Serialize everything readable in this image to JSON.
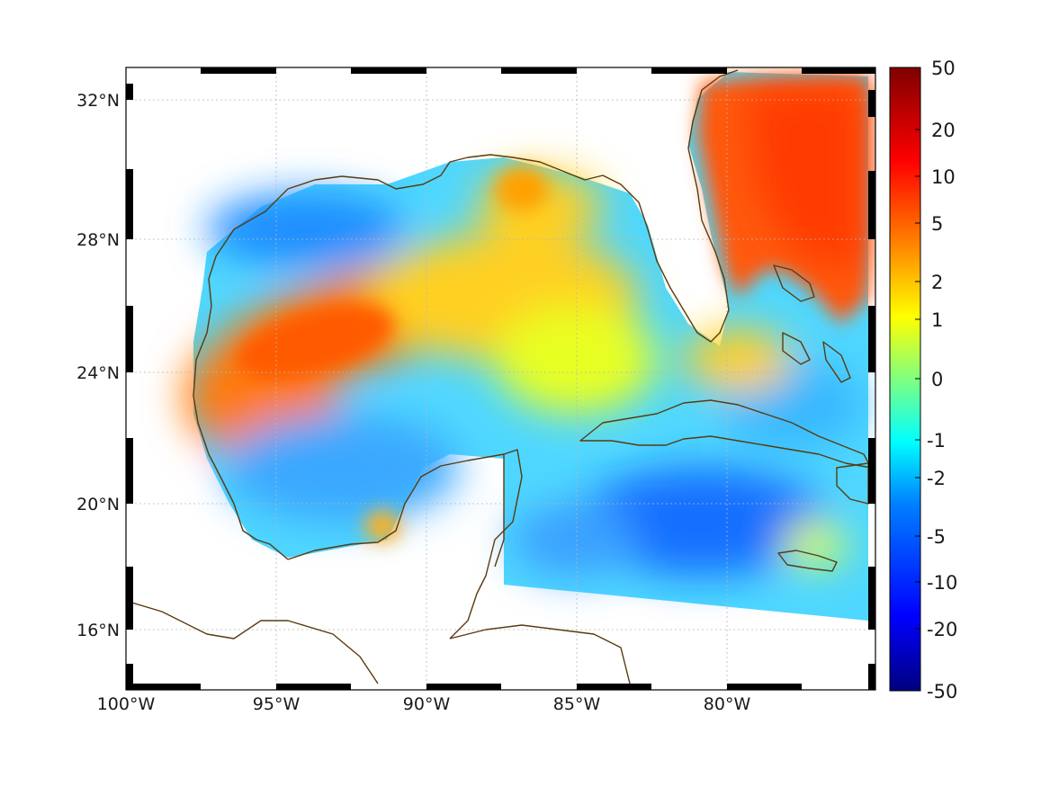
{
  "map": {
    "lon_labels": [
      "100°W",
      "95°W",
      "90°W",
      "85°W",
      "80°W"
    ],
    "lat_labels": [
      "32°N",
      "28°N",
      "24°N",
      "20°N",
      "16°N"
    ],
    "lon_range": [
      -100,
      -75.2
    ],
    "lat_range": [
      14.3,
      33.0
    ],
    "grid": true,
    "coastline_color": "#5a3a10",
    "land_color": "#ffffff"
  },
  "colorbar": {
    "colormap": "jet",
    "tick_labels": [
      "50",
      "20",
      "10",
      "5",
      "2",
      "1",
      "0",
      "-1",
      "-2",
      "-5",
      "-10",
      "-20",
      "-50"
    ],
    "colors": [
      "#800000",
      "#ff0000",
      "#ff8000",
      "#ffff00",
      "#80ff80",
      "#00ffff",
      "#0080ff",
      "#0000ff",
      "#000080"
    ]
  },
  "regions": [
    {
      "name": "western-gulf-high",
      "level": "5"
    },
    {
      "name": "florida-atlantic-high",
      "level": "10"
    },
    {
      "name": "caribbean-low",
      "level": "-5"
    },
    {
      "name": "northwest-gulf-low",
      "level": "-5"
    },
    {
      "name": "central-gulf-mid",
      "level": "2"
    }
  ]
}
